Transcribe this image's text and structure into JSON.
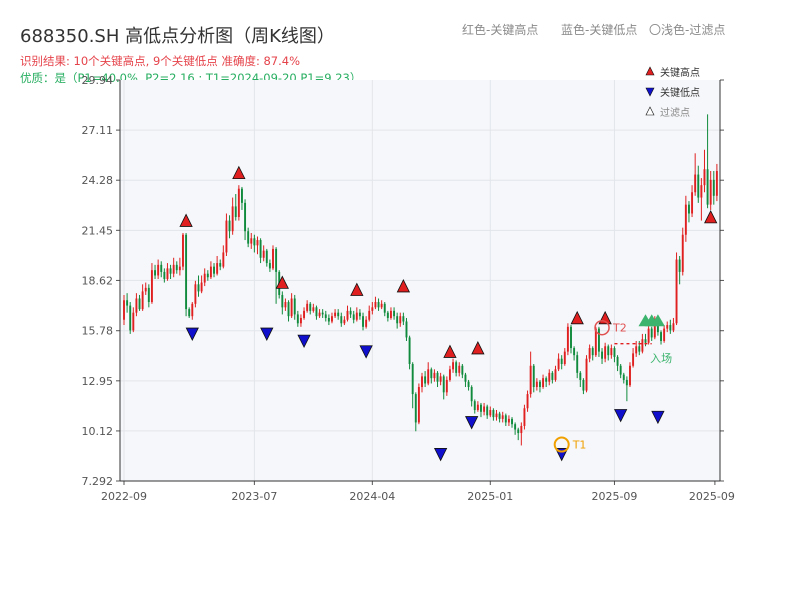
{
  "header": {
    "title": "688350.SH 高低点分析图（周K线图）",
    "result_line": "识别结果: 10个关键高点, 9个关键低点  准确度: 87.4%",
    "quality_line": "优质：是（P1=40.0%, P2=2.16 ; T1=2024-09-20 P1=9.23）",
    "legend_red": "红色-关键高点",
    "legend_blue": "蓝色-关键低点",
    "legend_gray": "〇浅色-过滤点"
  },
  "colors": {
    "up": "#e02020",
    "down": "#108a3c",
    "high_marker": "#e02020",
    "low_marker": "#1010cc",
    "t1": "#f0a000",
    "t2": "#e05050",
    "entry": "#3cb46e",
    "plot_bg": "#f6f7fa"
  },
  "chart_data": {
    "type": "candlestick",
    "ylim": [
      7.292,
      29.94
    ],
    "y_ticks": [
      7.292,
      10.12,
      12.95,
      15.78,
      18.62,
      21.45,
      24.28,
      27.11,
      29.94
    ],
    "y_tick_labels": [
      "7.292",
      "10.12",
      "12.95",
      "15.78",
      "18.62",
      "21.45",
      "24.28",
      "27.11",
      "29.94"
    ],
    "x_ticks": [
      "2022-09",
      "2023-07",
      "2024-04",
      "2025-01",
      "2025-09"
    ],
    "x_tick_overlap_label": "2025-09",
    "legend": {
      "high": "关键高点",
      "low": "关键低点",
      "filtered": "过滤点"
    },
    "annotations": {
      "t1_label": "T1",
      "t2_label": "T2",
      "entry_label": "入场"
    },
    "candles": [
      [
        16.4,
        17.5,
        17.8,
        16.1
      ],
      [
        17.5,
        17.2,
        17.9,
        16.8
      ],
      [
        17.2,
        15.8,
        17.4,
        15.6
      ],
      [
        15.8,
        16.8,
        17.1,
        15.7
      ],
      [
        16.8,
        17.6,
        17.9,
        16.6
      ],
      [
        17.6,
        17.0,
        17.8,
        16.9
      ],
      [
        17.0,
        18.0,
        18.4,
        16.9
      ],
      [
        18.0,
        18.2,
        18.5,
        17.8
      ],
      [
        18.2,
        17.4,
        18.4,
        17.1
      ],
      [
        17.4,
        19.2,
        19.6,
        17.3
      ],
      [
        19.2,
        18.9,
        19.5,
        18.7
      ],
      [
        18.9,
        19.5,
        19.8,
        18.7
      ],
      [
        19.5,
        19.1,
        19.7,
        18.8
      ],
      [
        19.1,
        18.7,
        19.3,
        18.5
      ],
      [
        18.7,
        19.3,
        19.6,
        18.6
      ],
      [
        19.3,
        19.0,
        19.5,
        18.7
      ],
      [
        19.0,
        19.5,
        19.9,
        18.8
      ],
      [
        19.5,
        19.2,
        19.7,
        19.0
      ],
      [
        19.2,
        19.4,
        19.9,
        18.9
      ],
      [
        19.4,
        21.2,
        21.3,
        19.2
      ],
      [
        21.2,
        17.0,
        21.3,
        16.6
      ],
      [
        17.0,
        16.6,
        17.1,
        16.5
      ],
      [
        16.6,
        17.3,
        17.4,
        16.4
      ],
      [
        17.3,
        18.4,
        18.6,
        17.1
      ],
      [
        18.4,
        18.0,
        18.9,
        17.7
      ],
      [
        18.0,
        18.5,
        18.9,
        17.9
      ],
      [
        18.5,
        19.0,
        19.3,
        18.3
      ],
      [
        19.0,
        18.8,
        19.2,
        18.6
      ],
      [
        18.8,
        19.4,
        19.7,
        18.7
      ],
      [
        19.4,
        19.0,
        19.6,
        18.8
      ],
      [
        19.0,
        19.6,
        20.0,
        18.9
      ],
      [
        19.6,
        19.4,
        19.8,
        19.2
      ],
      [
        19.4,
        20.2,
        20.6,
        19.3
      ],
      [
        20.2,
        22.0,
        22.4,
        20.0
      ],
      [
        22.0,
        21.4,
        22.3,
        21.0
      ],
      [
        21.4,
        22.8,
        23.3,
        21.2
      ],
      [
        22.8,
        22.2,
        23.5,
        22.0
      ],
      [
        22.2,
        23.8,
        24.0,
        22.0
      ],
      [
        23.8,
        23.0,
        23.9,
        22.6
      ],
      [
        23.0,
        21.4,
        23.2,
        20.9
      ],
      [
        21.4,
        20.7,
        21.6,
        20.5
      ],
      [
        20.7,
        21.0,
        21.3,
        20.4
      ],
      [
        21.0,
        20.6,
        21.2,
        20.2
      ],
      [
        20.6,
        20.9,
        21.1,
        20.1
      ],
      [
        20.9,
        19.9,
        21.0,
        19.6
      ],
      [
        19.9,
        20.3,
        20.6,
        19.7
      ],
      [
        20.3,
        19.6,
        20.4,
        19.4
      ],
      [
        19.6,
        19.3,
        19.8,
        19.1
      ],
      [
        19.3,
        20.4,
        20.6,
        19.2
      ],
      [
        20.4,
        19.1,
        20.5,
        17.3
      ],
      [
        19.1,
        17.8,
        19.2,
        17.6
      ],
      [
        17.8,
        17.1,
        18.0,
        16.7
      ],
      [
        17.1,
        17.4,
        17.6,
        16.9
      ],
      [
        17.4,
        16.6,
        17.5,
        16.3
      ],
      [
        16.6,
        17.6,
        17.9,
        16.5
      ],
      [
        17.6,
        16.7,
        17.8,
        16.4
      ],
      [
        16.7,
        16.2,
        16.9,
        16.0
      ],
      [
        16.2,
        16.5,
        16.7,
        16.0
      ],
      [
        16.5,
        16.9,
        17.1,
        16.4
      ],
      [
        16.9,
        17.3,
        17.5,
        16.8
      ],
      [
        17.3,
        16.9,
        17.4,
        16.7
      ],
      [
        16.9,
        17.1,
        17.3,
        16.8
      ],
      [
        17.1,
        16.6,
        17.2,
        16.4
      ],
      [
        16.6,
        16.8,
        17.0,
        16.5
      ],
      [
        16.8,
        16.7,
        17.0,
        16.5
      ],
      [
        16.7,
        16.5,
        16.9,
        16.3
      ],
      [
        16.5,
        16.3,
        16.7,
        16.1
      ],
      [
        16.3,
        16.6,
        16.8,
        16.2
      ],
      [
        16.6,
        16.8,
        17.0,
        16.5
      ],
      [
        16.8,
        16.6,
        17.0,
        16.4
      ],
      [
        16.6,
        16.2,
        16.8,
        16.0
      ],
      [
        16.2,
        16.4,
        16.6,
        16.1
      ],
      [
        16.4,
        16.9,
        17.2,
        16.3
      ],
      [
        16.9,
        16.7,
        17.1,
        16.5
      ],
      [
        16.7,
        16.4,
        16.9,
        16.2
      ],
      [
        16.4,
        16.8,
        17.1,
        16.3
      ],
      [
        16.8,
        16.6,
        17.0,
        16.4
      ],
      [
        16.6,
        16.0,
        16.8,
        15.8
      ],
      [
        16.0,
        16.4,
        16.6,
        15.9
      ],
      [
        16.4,
        16.9,
        17.2,
        16.3
      ],
      [
        16.9,
        17.1,
        17.4,
        16.7
      ],
      [
        17.1,
        17.4,
        17.7,
        17.0
      ],
      [
        17.4,
        17.1,
        17.6,
        16.9
      ],
      [
        17.1,
        17.3,
        17.5,
        17.0
      ],
      [
        17.3,
        16.8,
        17.4,
        16.6
      ],
      [
        16.8,
        16.5,
        16.9,
        16.3
      ],
      [
        16.5,
        16.9,
        17.1,
        16.4
      ],
      [
        16.9,
        16.6,
        17.1,
        16.4
      ],
      [
        16.6,
        16.2,
        16.8,
        15.9
      ],
      [
        16.2,
        16.6,
        16.8,
        16.0
      ],
      [
        16.6,
        16.3,
        16.8,
        16.1
      ],
      [
        16.3,
        15.4,
        16.5,
        15.2
      ],
      [
        15.4,
        13.9,
        15.5,
        13.6
      ],
      [
        13.9,
        12.2,
        14.0,
        11.4
      ],
      [
        12.2,
        10.6,
        12.3,
        10.1
      ],
      [
        10.6,
        12.6,
        12.8,
        10.5
      ],
      [
        12.6,
        13.2,
        13.4,
        12.3
      ],
      [
        13.2,
        12.8,
        13.5,
        12.6
      ],
      [
        12.8,
        13.6,
        14.0,
        12.7
      ],
      [
        13.6,
        13.1,
        13.7,
        12.8
      ],
      [
        13.1,
        13.4,
        13.6,
        12.9
      ],
      [
        13.4,
        12.9,
        13.5,
        12.6
      ],
      [
        12.9,
        13.2,
        13.4,
        12.7
      ],
      [
        13.2,
        12.3,
        13.3,
        11.9
      ],
      [
        12.3,
        13.0,
        13.2,
        12.1
      ],
      [
        13.0,
        13.6,
        13.8,
        12.9
      ],
      [
        13.6,
        14.0,
        14.2,
        13.4
      ],
      [
        14.0,
        13.4,
        14.1,
        13.2
      ],
      [
        13.4,
        13.8,
        14.0,
        13.2
      ],
      [
        13.8,
        13.3,
        13.9,
        13.1
      ],
      [
        13.3,
        12.9,
        13.4,
        12.6
      ],
      [
        12.9,
        12.6,
        13.0,
        12.4
      ],
      [
        12.6,
        11.8,
        12.7,
        11.5
      ],
      [
        11.8,
        11.3,
        11.9,
        11.1
      ],
      [
        11.3,
        11.6,
        11.8,
        11.2
      ],
      [
        11.6,
        11.2,
        11.7,
        10.9
      ],
      [
        11.2,
        11.5,
        11.7,
        11.0
      ],
      [
        11.5,
        11.0,
        11.6,
        10.8
      ],
      [
        11.0,
        11.3,
        11.5,
        10.9
      ],
      [
        11.3,
        10.9,
        11.4,
        10.7
      ],
      [
        10.9,
        11.1,
        11.3,
        10.7
      ],
      [
        11.1,
        10.8,
        11.2,
        10.6
      ],
      [
        10.8,
        11.0,
        11.2,
        10.6
      ],
      [
        11.0,
        10.6,
        11.1,
        10.4
      ],
      [
        10.6,
        10.8,
        11.0,
        10.4
      ],
      [
        10.8,
        10.5,
        10.9,
        10.3
      ],
      [
        10.5,
        10.2,
        10.6,
        9.9
      ],
      [
        10.2,
        10.0,
        10.3,
        9.6
      ],
      [
        10.0,
        10.4,
        10.6,
        9.3
      ],
      [
        10.4,
        11.4,
        11.6,
        10.2
      ],
      [
        11.4,
        12.2,
        12.4,
        11.2
      ],
      [
        12.2,
        13.8,
        14.6,
        12.0
      ],
      [
        13.8,
        12.6,
        13.9,
        12.3
      ],
      [
        12.6,
        12.9,
        13.1,
        12.4
      ],
      [
        12.9,
        12.6,
        13.0,
        12.3
      ],
      [
        12.6,
        13.1,
        13.3,
        12.5
      ],
      [
        13.1,
        12.9,
        13.2,
        12.6
      ],
      [
        12.9,
        13.4,
        13.6,
        12.7
      ],
      [
        13.4,
        13.0,
        13.5,
        12.8
      ],
      [
        13.0,
        13.6,
        13.8,
        12.9
      ],
      [
        13.6,
        14.2,
        14.5,
        13.5
      ],
      [
        14.2,
        13.9,
        14.4,
        13.6
      ],
      [
        13.9,
        14.6,
        14.8,
        13.8
      ],
      [
        14.6,
        16.0,
        16.2,
        14.4
      ],
      [
        16.0,
        14.8,
        16.1,
        14.5
      ],
      [
        14.8,
        14.4,
        14.9,
        14.1
      ],
      [
        14.4,
        13.4,
        14.6,
        13.1
      ],
      [
        13.4,
        13.0,
        13.5,
        12.6
      ],
      [
        13.0,
        12.4,
        13.1,
        12.2
      ],
      [
        12.4,
        14.2,
        14.4,
        12.3
      ],
      [
        14.2,
        14.8,
        15.0,
        14.0
      ],
      [
        14.8,
        14.4,
        14.9,
        14.1
      ],
      [
        14.4,
        15.9,
        16.0,
        14.3
      ],
      [
        15.9,
        14.6,
        16.0,
        14.3
      ],
      [
        14.6,
        14.2,
        14.8,
        13.9
      ],
      [
        14.2,
        14.9,
        15.1,
        14.0
      ],
      [
        14.9,
        14.4,
        15.0,
        14.1
      ],
      [
        14.4,
        14.8,
        15.0,
        14.2
      ],
      [
        14.8,
        14.3,
        14.9,
        14.0
      ],
      [
        14.3,
        13.8,
        14.4,
        13.5
      ],
      [
        13.8,
        13.3,
        13.9,
        13.1
      ],
      [
        13.3,
        13.0,
        13.4,
        12.8
      ],
      [
        13.0,
        12.7,
        13.2,
        11.8
      ],
      [
        12.7,
        13.8,
        14.0,
        12.6
      ],
      [
        13.8,
        14.5,
        14.8,
        13.7
      ],
      [
        14.5,
        14.9,
        15.2,
        14.3
      ],
      [
        14.9,
        14.6,
        15.2,
        14.4
      ],
      [
        14.6,
        15.3,
        15.6,
        14.5
      ],
      [
        15.3,
        15.1,
        15.6,
        14.9
      ],
      [
        15.1,
        15.9,
        16.1,
        15.0
      ],
      [
        15.9,
        15.4,
        16.0,
        15.2
      ],
      [
        15.4,
        16.3,
        16.6,
        15.3
      ],
      [
        16.3,
        15.7,
        16.5,
        15.5
      ],
      [
        15.7,
        15.2,
        15.8,
        15.0
      ],
      [
        15.2,
        15.9,
        16.1,
        15.1
      ],
      [
        15.9,
        16.1,
        16.3,
        15.7
      ],
      [
        16.1,
        15.8,
        16.4,
        15.6
      ],
      [
        15.8,
        16.2,
        16.5,
        15.7
      ],
      [
        16.2,
        19.8,
        20.2,
        16.1
      ],
      [
        19.8,
        19.1,
        20.0,
        18.4
      ],
      [
        19.1,
        21.2,
        21.6,
        18.9
      ],
      [
        21.2,
        22.9,
        23.4,
        20.8
      ],
      [
        22.9,
        22.4,
        23.1,
        21.9
      ],
      [
        22.4,
        23.6,
        24.0,
        22.2
      ],
      [
        23.6,
        24.6,
        25.8,
        23.4
      ],
      [
        24.6,
        23.3,
        25.1,
        23.0
      ],
      [
        23.3,
        24.0,
        24.4,
        22.0
      ],
      [
        24.0,
        24.9,
        26.0,
        23.6
      ],
      [
        24.9,
        22.9,
        28.0,
        22.7
      ],
      [
        22.9,
        24.3,
        24.8,
        22.6
      ],
      [
        24.3,
        23.4,
        24.8,
        22.9
      ],
      [
        23.4,
        24.8,
        25.2,
        23.1
      ]
    ],
    "high_markers": [
      [
        20,
        21.5
      ],
      [
        37,
        24.2
      ],
      [
        51,
        18.0
      ],
      [
        75,
        17.6
      ],
      [
        90,
        17.8
      ],
      [
        105,
        14.1
      ],
      [
        114,
        14.3
      ],
      [
        146,
        16.0
      ],
      [
        155,
        16.0
      ],
      [
        189,
        21.7
      ]
    ],
    "low_markers": [
      [
        22,
        16.1
      ],
      [
        46,
        16.1
      ],
      [
        58,
        15.7
      ],
      [
        78,
        15.1
      ],
      [
        102,
        9.3
      ],
      [
        112,
        11.1
      ],
      [
        141,
        9.3
      ],
      [
        160,
        11.5
      ],
      [
        172,
        11.4
      ]
    ],
    "filtered_markers": [
      [
        168,
        16.2
      ],
      [
        170,
        16.2
      ],
      [
        172,
        16.2
      ]
    ],
    "t1": [
      141,
      9.35
    ],
    "t2": [
      154,
      15.95
    ],
    "entry": [
      174,
      15.6
    ]
  }
}
